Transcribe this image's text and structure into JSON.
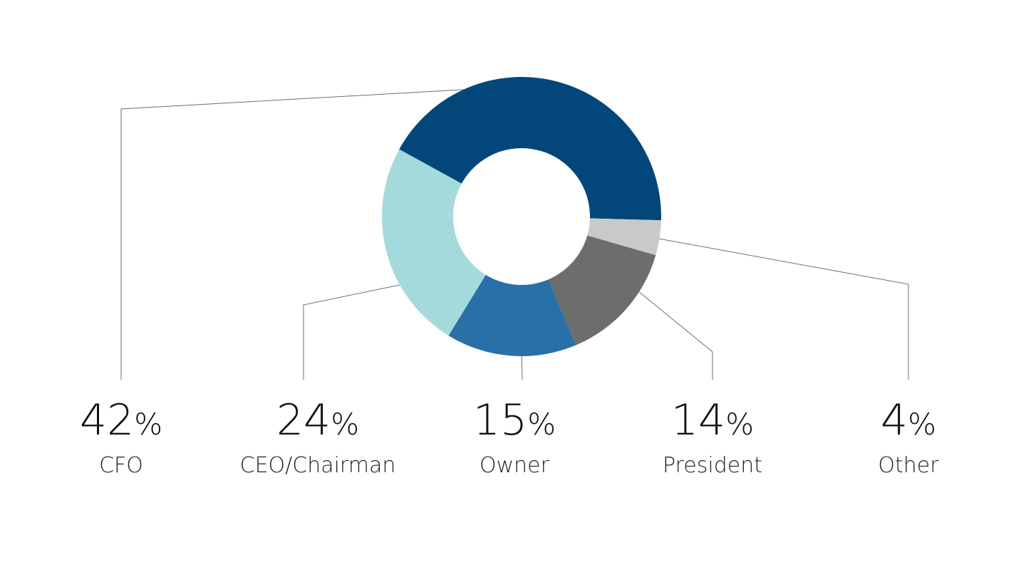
{
  "chart_data": {
    "type": "pie",
    "donut": true,
    "title": "",
    "unit": "%",
    "slices": [
      {
        "label": "CFO",
        "value": 42,
        "display": "42",
        "color": "#03477a"
      },
      {
        "label": "Other",
        "value": 4,
        "display": "4",
        "color": "#c8cac8"
      },
      {
        "label": "President",
        "value": 14,
        "display": "14",
        "color": "#6c6e6c"
      },
      {
        "label": "Owner",
        "value": 15,
        "display": "15",
        "color": "#2870a7"
      },
      {
        "label": "CEO/Chairman",
        "value": 24,
        "display": "24",
        "color": "#a5dadc"
      }
    ],
    "legend": "none",
    "grid": false
  }
}
